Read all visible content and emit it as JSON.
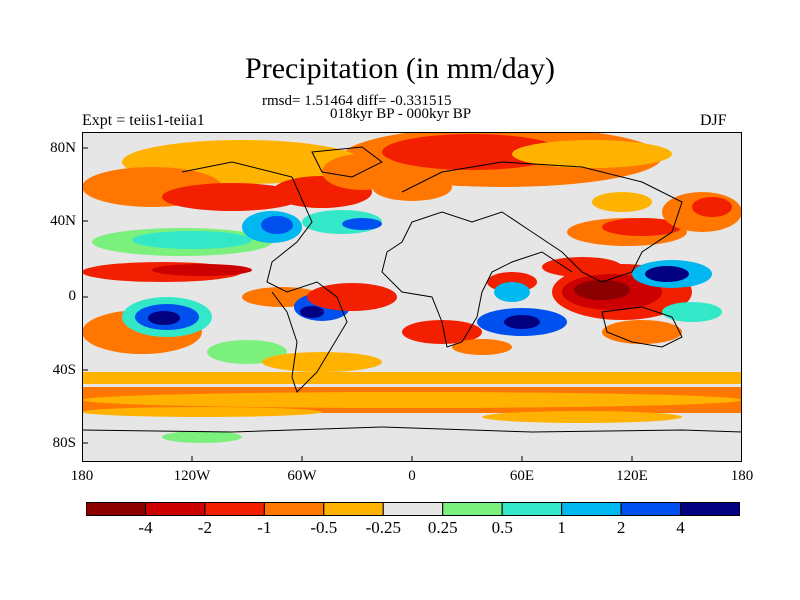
{
  "title": "Precipitation (in mm/day)",
  "stats": "rmsd= 1.51464 diff= -0.331515",
  "period": "018kyr BP - 000kyr BP",
  "experiment": "Expt = teiis1-teiia1",
  "season": "DJF",
  "lat_labels": [
    "80N",
    "40N",
    "0",
    "40S",
    "80S"
  ],
  "lon_labels": [
    "180",
    "120W",
    "60W",
    "0",
    "60E",
    "120E",
    "180"
  ],
  "colorbar": {
    "colors": [
      "#8b0000",
      "#cc0000",
      "#f21f00",
      "#ff7700",
      "#ffb300",
      "#e6e6e6",
      "#7cf07c",
      "#33e8c8",
      "#00b7f0",
      "#0050f0",
      "#000080"
    ],
    "labels": [
      "-4",
      "-2",
      "-1",
      "-0.5",
      "-0.25",
      "0.25",
      "0.5",
      "1",
      "2",
      "4"
    ]
  }
}
